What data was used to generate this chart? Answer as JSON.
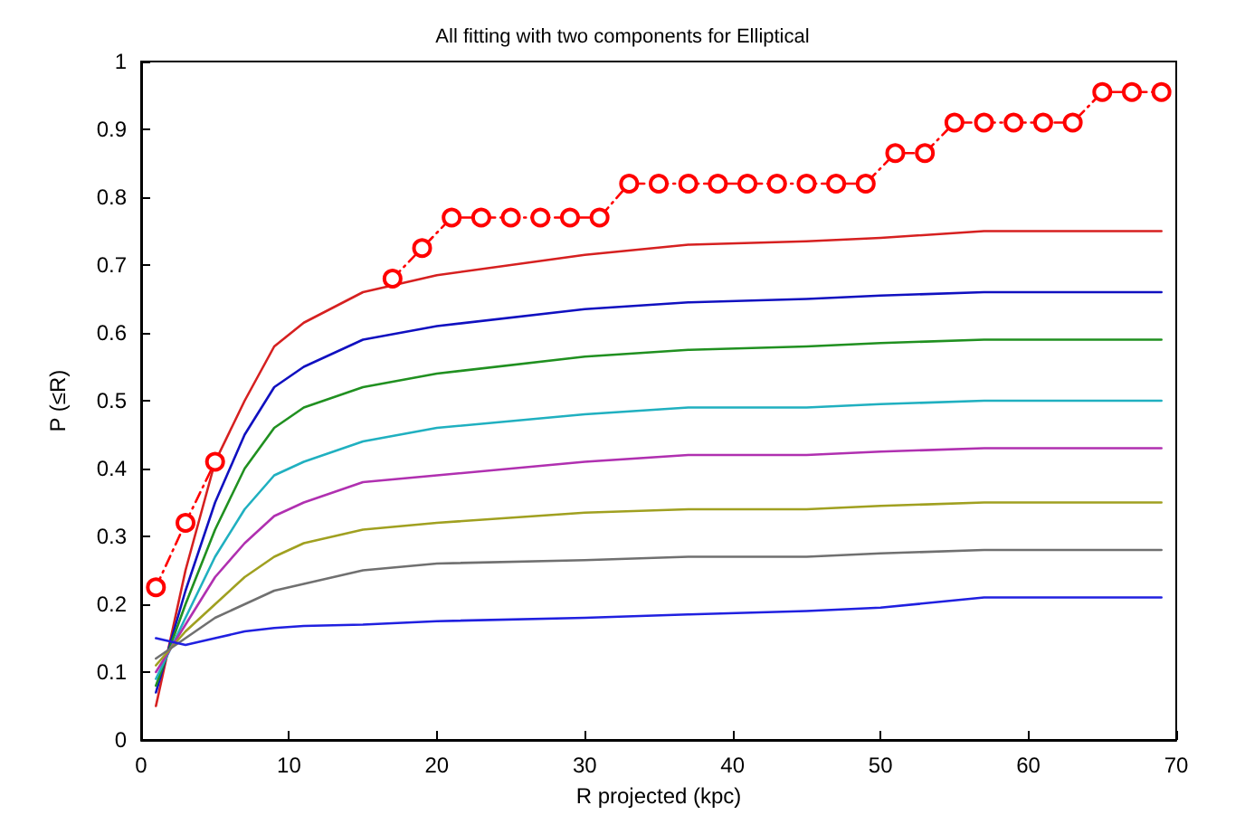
{
  "chart_data": {
    "type": "line",
    "title": "All fitting with two components for Elliptical",
    "xlabel": "R projected (kpc)",
    "ylabel": "P (≤R)",
    "xlim": [
      0,
      70
    ],
    "xticks": [
      0,
      10,
      20,
      30,
      40,
      50,
      60,
      70
    ],
    "ylim": [
      0,
      1
    ],
    "yticks": [
      0,
      0.1,
      0.2,
      0.3,
      0.4,
      0.5,
      0.6,
      0.7,
      0.8,
      0.9,
      1
    ],
    "grid": false,
    "series": [
      {
        "color": "#d62020",
        "marker": "none",
        "line_style": "solid",
        "x": [
          1,
          3,
          5,
          7,
          9,
          11,
          15,
          20,
          30,
          37,
          45,
          50,
          57,
          69
        ],
        "values": [
          0.05,
          0.25,
          0.41,
          0.5,
          0.58,
          0.615,
          0.66,
          0.685,
          0.715,
          0.73,
          0.735,
          0.74,
          0.75,
          0.75
        ]
      },
      {
        "color": "#1010c0",
        "marker": "none",
        "line_style": "solid",
        "x": [
          1,
          3,
          5,
          7,
          9,
          11,
          15,
          20,
          30,
          37,
          45,
          50,
          57,
          69
        ],
        "values": [
          0.07,
          0.22,
          0.35,
          0.45,
          0.52,
          0.55,
          0.59,
          0.61,
          0.635,
          0.645,
          0.65,
          0.655,
          0.66,
          0.66
        ]
      },
      {
        "color": "#209020",
        "marker": "none",
        "line_style": "solid",
        "x": [
          1,
          3,
          5,
          7,
          9,
          11,
          15,
          20,
          30,
          37,
          45,
          50,
          57,
          69
        ],
        "values": [
          0.08,
          0.2,
          0.31,
          0.4,
          0.46,
          0.49,
          0.52,
          0.54,
          0.565,
          0.575,
          0.58,
          0.585,
          0.59,
          0.59
        ]
      },
      {
        "color": "#20b0c0",
        "marker": "none",
        "line_style": "solid",
        "x": [
          1,
          3,
          5,
          7,
          9,
          11,
          15,
          20,
          30,
          37,
          45,
          50,
          57,
          69
        ],
        "values": [
          0.09,
          0.18,
          0.27,
          0.34,
          0.39,
          0.41,
          0.44,
          0.46,
          0.48,
          0.49,
          0.49,
          0.495,
          0.5,
          0.5
        ]
      },
      {
        "color": "#b030b0",
        "marker": "none",
        "line_style": "solid",
        "x": [
          1,
          3,
          5,
          7,
          9,
          11,
          15,
          20,
          30,
          37,
          45,
          50,
          57,
          69
        ],
        "values": [
          0.1,
          0.17,
          0.24,
          0.29,
          0.33,
          0.35,
          0.38,
          0.39,
          0.41,
          0.42,
          0.42,
          0.425,
          0.43,
          0.43
        ]
      },
      {
        "color": "#a0a020",
        "marker": "none",
        "line_style": "solid",
        "x": [
          1,
          3,
          5,
          7,
          9,
          11,
          15,
          20,
          30,
          37,
          45,
          50,
          57,
          69
        ],
        "values": [
          0.11,
          0.16,
          0.2,
          0.24,
          0.27,
          0.29,
          0.31,
          0.32,
          0.335,
          0.34,
          0.34,
          0.345,
          0.35,
          0.35
        ]
      },
      {
        "color": "#707070",
        "marker": "none",
        "line_style": "solid",
        "x": [
          1,
          3,
          5,
          7,
          9,
          11,
          15,
          20,
          30,
          37,
          45,
          50,
          57,
          69
        ],
        "values": [
          0.12,
          0.15,
          0.18,
          0.2,
          0.22,
          0.23,
          0.25,
          0.26,
          0.265,
          0.27,
          0.27,
          0.275,
          0.28,
          0.28
        ]
      },
      {
        "color": "#2020e0",
        "marker": "none",
        "line_style": "solid",
        "x": [
          1,
          3,
          5,
          7,
          9,
          11,
          15,
          20,
          30,
          37,
          45,
          50,
          57,
          69
        ],
        "values": [
          0.15,
          0.14,
          0.15,
          0.16,
          0.165,
          0.168,
          0.17,
          0.175,
          0.18,
          0.185,
          0.19,
          0.195,
          0.21,
          0.21
        ]
      },
      {
        "color": "#ff0000",
        "marker": "circle",
        "line_style": "dashed",
        "x": [
          1,
          3,
          5,
          7,
          9,
          11,
          13,
          15,
          17,
          19,
          21,
          23,
          25,
          27,
          29,
          31,
          33,
          35,
          37,
          39,
          41,
          43,
          45,
          47,
          49,
          51,
          53,
          55,
          57,
          59,
          61,
          63,
          65,
          67,
          69
        ],
        "values": [
          0.225,
          0.32,
          0.41,
          null,
          null,
          null,
          null,
          null,
          0.68,
          0.725,
          0.77,
          0.77,
          0.77,
          0.77,
          0.77,
          0.77,
          0.82,
          0.82,
          0.82,
          0.82,
          0.82,
          0.82,
          0.82,
          0.82,
          0.82,
          0.865,
          0.865,
          0.91,
          0.91,
          0.91,
          0.91,
          0.91,
          0.955,
          0.955,
          0.955
        ]
      }
    ]
  }
}
